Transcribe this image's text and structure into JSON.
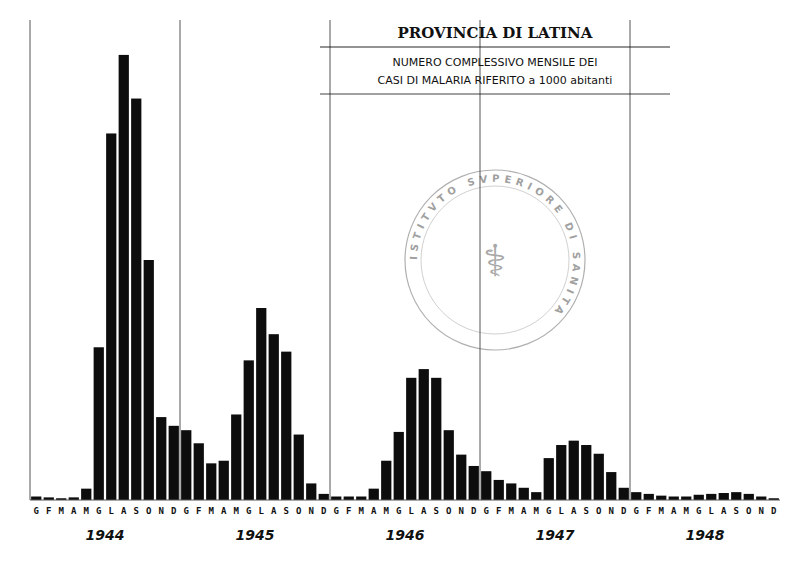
{
  "chart_data": {
    "type": "bar",
    "title": "PROVINCIA DI LATINA",
    "subtitle": [
      "NUMERO COMPLESSIVO MENSILE DEI",
      "CASI DI MALARIA RIFERITO a 1000 abitanti"
    ],
    "annotations": [
      "ISTITVTO SVPERIORE DI SANITA",
      "⚕"
    ],
    "categories": [
      "G",
      "F",
      "M",
      "A",
      "M",
      "G",
      "L",
      "A",
      "S",
      "O",
      "N",
      "D",
      "G",
      "F",
      "M",
      "A",
      "M",
      "G",
      "L",
      "A",
      "S",
      "O",
      "N",
      "D",
      "G",
      "F",
      "M",
      "A",
      "M",
      "G",
      "L",
      "A",
      "S",
      "O",
      "N",
      "D",
      "G",
      "F",
      "M",
      "A",
      "M",
      "G",
      "L",
      "A",
      "S",
      "O",
      "N",
      "D",
      "G",
      "F",
      "M",
      "A",
      "M",
      "G",
      "L",
      "A",
      "S",
      "O",
      "N",
      "D"
    ],
    "x_groups": [
      "1944",
      "1945",
      "1946",
      "1947",
      "1948"
    ],
    "values": [
      0.4,
      0.3,
      0.2,
      0.3,
      1.3,
      17.5,
      42.0,
      51.0,
      46.0,
      27.5,
      9.5,
      8.5,
      8.0,
      6.5,
      4.2,
      4.5,
      9.8,
      16.0,
      22.0,
      19.0,
      17.0,
      7.5,
      1.9,
      0.7,
      0.4,
      0.4,
      0.4,
      1.3,
      4.5,
      7.8,
      14.0,
      15.0,
      14.0,
      8.0,
      5.2,
      3.9,
      3.3,
      2.3,
      1.9,
      1.4,
      0.9,
      4.8,
      6.3,
      6.8,
      6.3,
      5.3,
      3.2,
      1.4,
      0.9,
      0.7,
      0.5,
      0.4,
      0.4,
      0.6,
      0.7,
      0.8,
      0.9,
      0.7,
      0.4,
      0.2
    ],
    "color": "#0d0d0d",
    "ylim": [
      0,
      55
    ],
    "yticks": [],
    "grid": false,
    "tick_labels": "x"
  }
}
